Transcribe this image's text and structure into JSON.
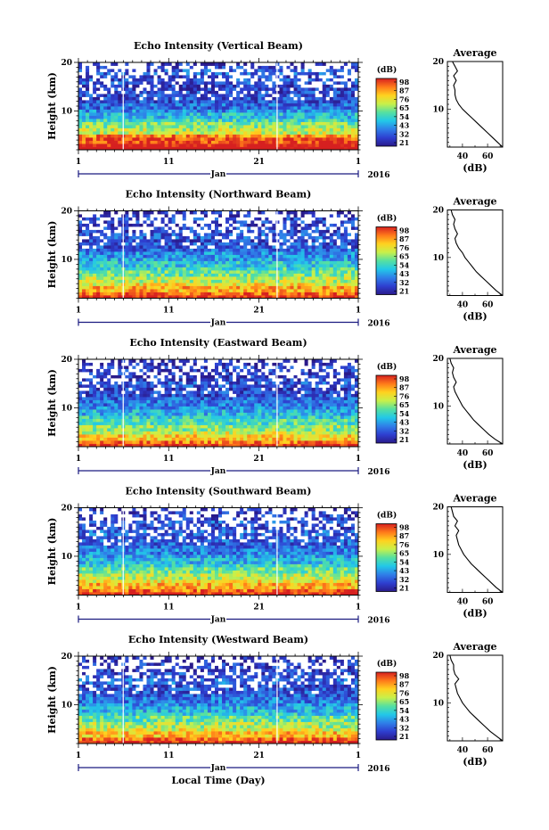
{
  "chart_data": {
    "type": "heatmap",
    "xlabel": "Local Time (Day)",
    "month_label": "Jan",
    "year_label": "2016",
    "x_ticks": [
      "1",
      "11",
      "21",
      "1"
    ],
    "xlim": [
      1,
      32
    ],
    "ylabel": "Height (km)",
    "ylim": [
      2,
      20
    ],
    "y_ticks": [
      10,
      20
    ],
    "colorbar": {
      "unit": "(dB)",
      "ticks": [
        "98",
        "87",
        "76",
        "65",
        "54",
        "43",
        "32",
        "21"
      ],
      "colors": [
        "#d62020",
        "#ff7a1a",
        "#ffd21f",
        "#c8f04a",
        "#56e0a0",
        "#22c8e8",
        "#2f7fe8",
        "#2e3fd0",
        "#2a1a8a"
      ]
    },
    "average_panel": {
      "title": "Average",
      "xlabel": "(dB)",
      "x_ticks": [
        40,
        60
      ],
      "xlim": [
        28,
        72
      ],
      "y_ticks": [
        10,
        20
      ]
    },
    "panels": [
      {
        "title": "Echo Intensity (Vertical Beam)",
        "average": [
          [
            72,
            2
          ],
          [
            68,
            3
          ],
          [
            64,
            4
          ],
          [
            60,
            5
          ],
          [
            56,
            6
          ],
          [
            52,
            7
          ],
          [
            48,
            8
          ],
          [
            44,
            9
          ],
          [
            40,
            10
          ],
          [
            37,
            11
          ],
          [
            35,
            12
          ],
          [
            34,
            13
          ],
          [
            34,
            14
          ],
          [
            33,
            15
          ],
          [
            35,
            16
          ],
          [
            33,
            17
          ],
          [
            36,
            18
          ],
          [
            34,
            19
          ],
          [
            32,
            20
          ]
        ]
      },
      {
        "title": "Echo Intensity (Northward Beam)",
        "average": [
          [
            72,
            2
          ],
          [
            67,
            3
          ],
          [
            63,
            4
          ],
          [
            59,
            5
          ],
          [
            55,
            6
          ],
          [
            51,
            7
          ],
          [
            48,
            8
          ],
          [
            45,
            9
          ],
          [
            42,
            10
          ],
          [
            40,
            11
          ],
          [
            37,
            12
          ],
          [
            35,
            13
          ],
          [
            34,
            14
          ],
          [
            36,
            15
          ],
          [
            34,
            16
          ],
          [
            33,
            17
          ],
          [
            34,
            18
          ],
          [
            32,
            19
          ],
          [
            31,
            20
          ]
        ]
      },
      {
        "title": "Echo Intensity (Eastward Beam)",
        "average": [
          [
            72,
            2
          ],
          [
            66,
            3
          ],
          [
            61,
            4
          ],
          [
            57,
            5
          ],
          [
            53,
            6
          ],
          [
            49,
            7
          ],
          [
            46,
            8
          ],
          [
            43,
            9
          ],
          [
            40,
            10
          ],
          [
            38,
            11
          ],
          [
            36,
            12
          ],
          [
            34,
            13
          ],
          [
            33,
            14
          ],
          [
            35,
            15
          ],
          [
            33,
            16
          ],
          [
            32,
            17
          ],
          [
            33,
            18
          ],
          [
            31,
            19
          ],
          [
            30,
            20
          ]
        ]
      },
      {
        "title": "Echo Intensity (Southward Beam)",
        "average": [
          [
            72,
            2
          ],
          [
            67,
            3
          ],
          [
            63,
            4
          ],
          [
            59,
            5
          ],
          [
            55,
            6
          ],
          [
            51,
            7
          ],
          [
            47,
            8
          ],
          [
            44,
            9
          ],
          [
            41,
            10
          ],
          [
            39,
            11
          ],
          [
            37,
            12
          ],
          [
            36,
            13
          ],
          [
            35,
            14
          ],
          [
            37,
            15
          ],
          [
            34,
            16
          ],
          [
            36,
            17
          ],
          [
            33,
            18
          ],
          [
            32,
            19
          ],
          [
            31,
            20
          ]
        ]
      },
      {
        "title": "Echo Intensity (Westward Beam)",
        "average": [
          [
            72,
            2
          ],
          [
            67,
            3
          ],
          [
            62,
            4
          ],
          [
            58,
            5
          ],
          [
            54,
            6
          ],
          [
            50,
            7
          ],
          [
            46,
            8
          ],
          [
            43,
            9
          ],
          [
            40,
            10
          ],
          [
            38,
            11
          ],
          [
            36,
            12
          ],
          [
            35,
            13
          ],
          [
            34,
            14
          ],
          [
            37,
            15
          ],
          [
            34,
            16
          ],
          [
            33,
            17
          ],
          [
            33,
            18
          ],
          [
            31,
            19
          ],
          [
            30,
            20
          ]
        ]
      }
    ]
  }
}
